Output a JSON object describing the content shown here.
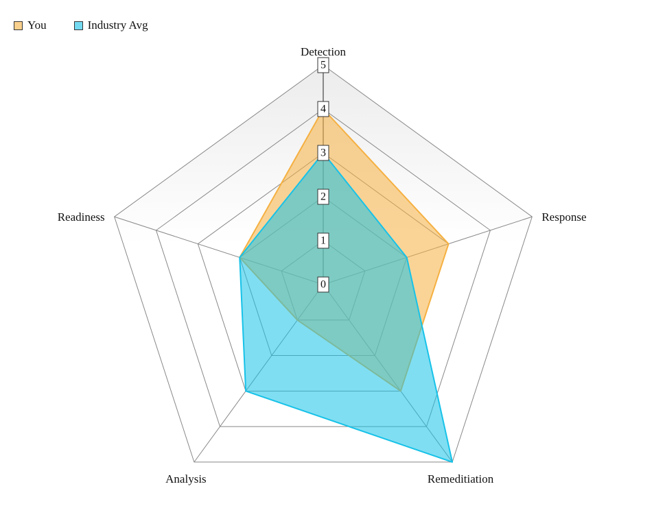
{
  "chart_data": {
    "type": "radar",
    "axes": [
      "Detection",
      "Response",
      "Remeditiation",
      "Analysis",
      "Readiness"
    ],
    "series": [
      {
        "name": "You",
        "values": [
          4,
          3,
          3,
          1,
          2
        ],
        "color": "#f5b041"
      },
      {
        "name": "Industry Avg",
        "values": [
          3,
          2,
          5,
          3,
          2
        ],
        "color": "#17c2e8"
      }
    ],
    "rlim": [
      0,
      5
    ],
    "ticks": [
      "0",
      "1",
      "2",
      "3",
      "4",
      "5"
    ],
    "legend_position": "top-left",
    "grid": true
  },
  "colors": {
    "grid_line": "#888888",
    "band_fill_top": "#eeeeee",
    "band_fill_bottom": "#ffffff"
  }
}
